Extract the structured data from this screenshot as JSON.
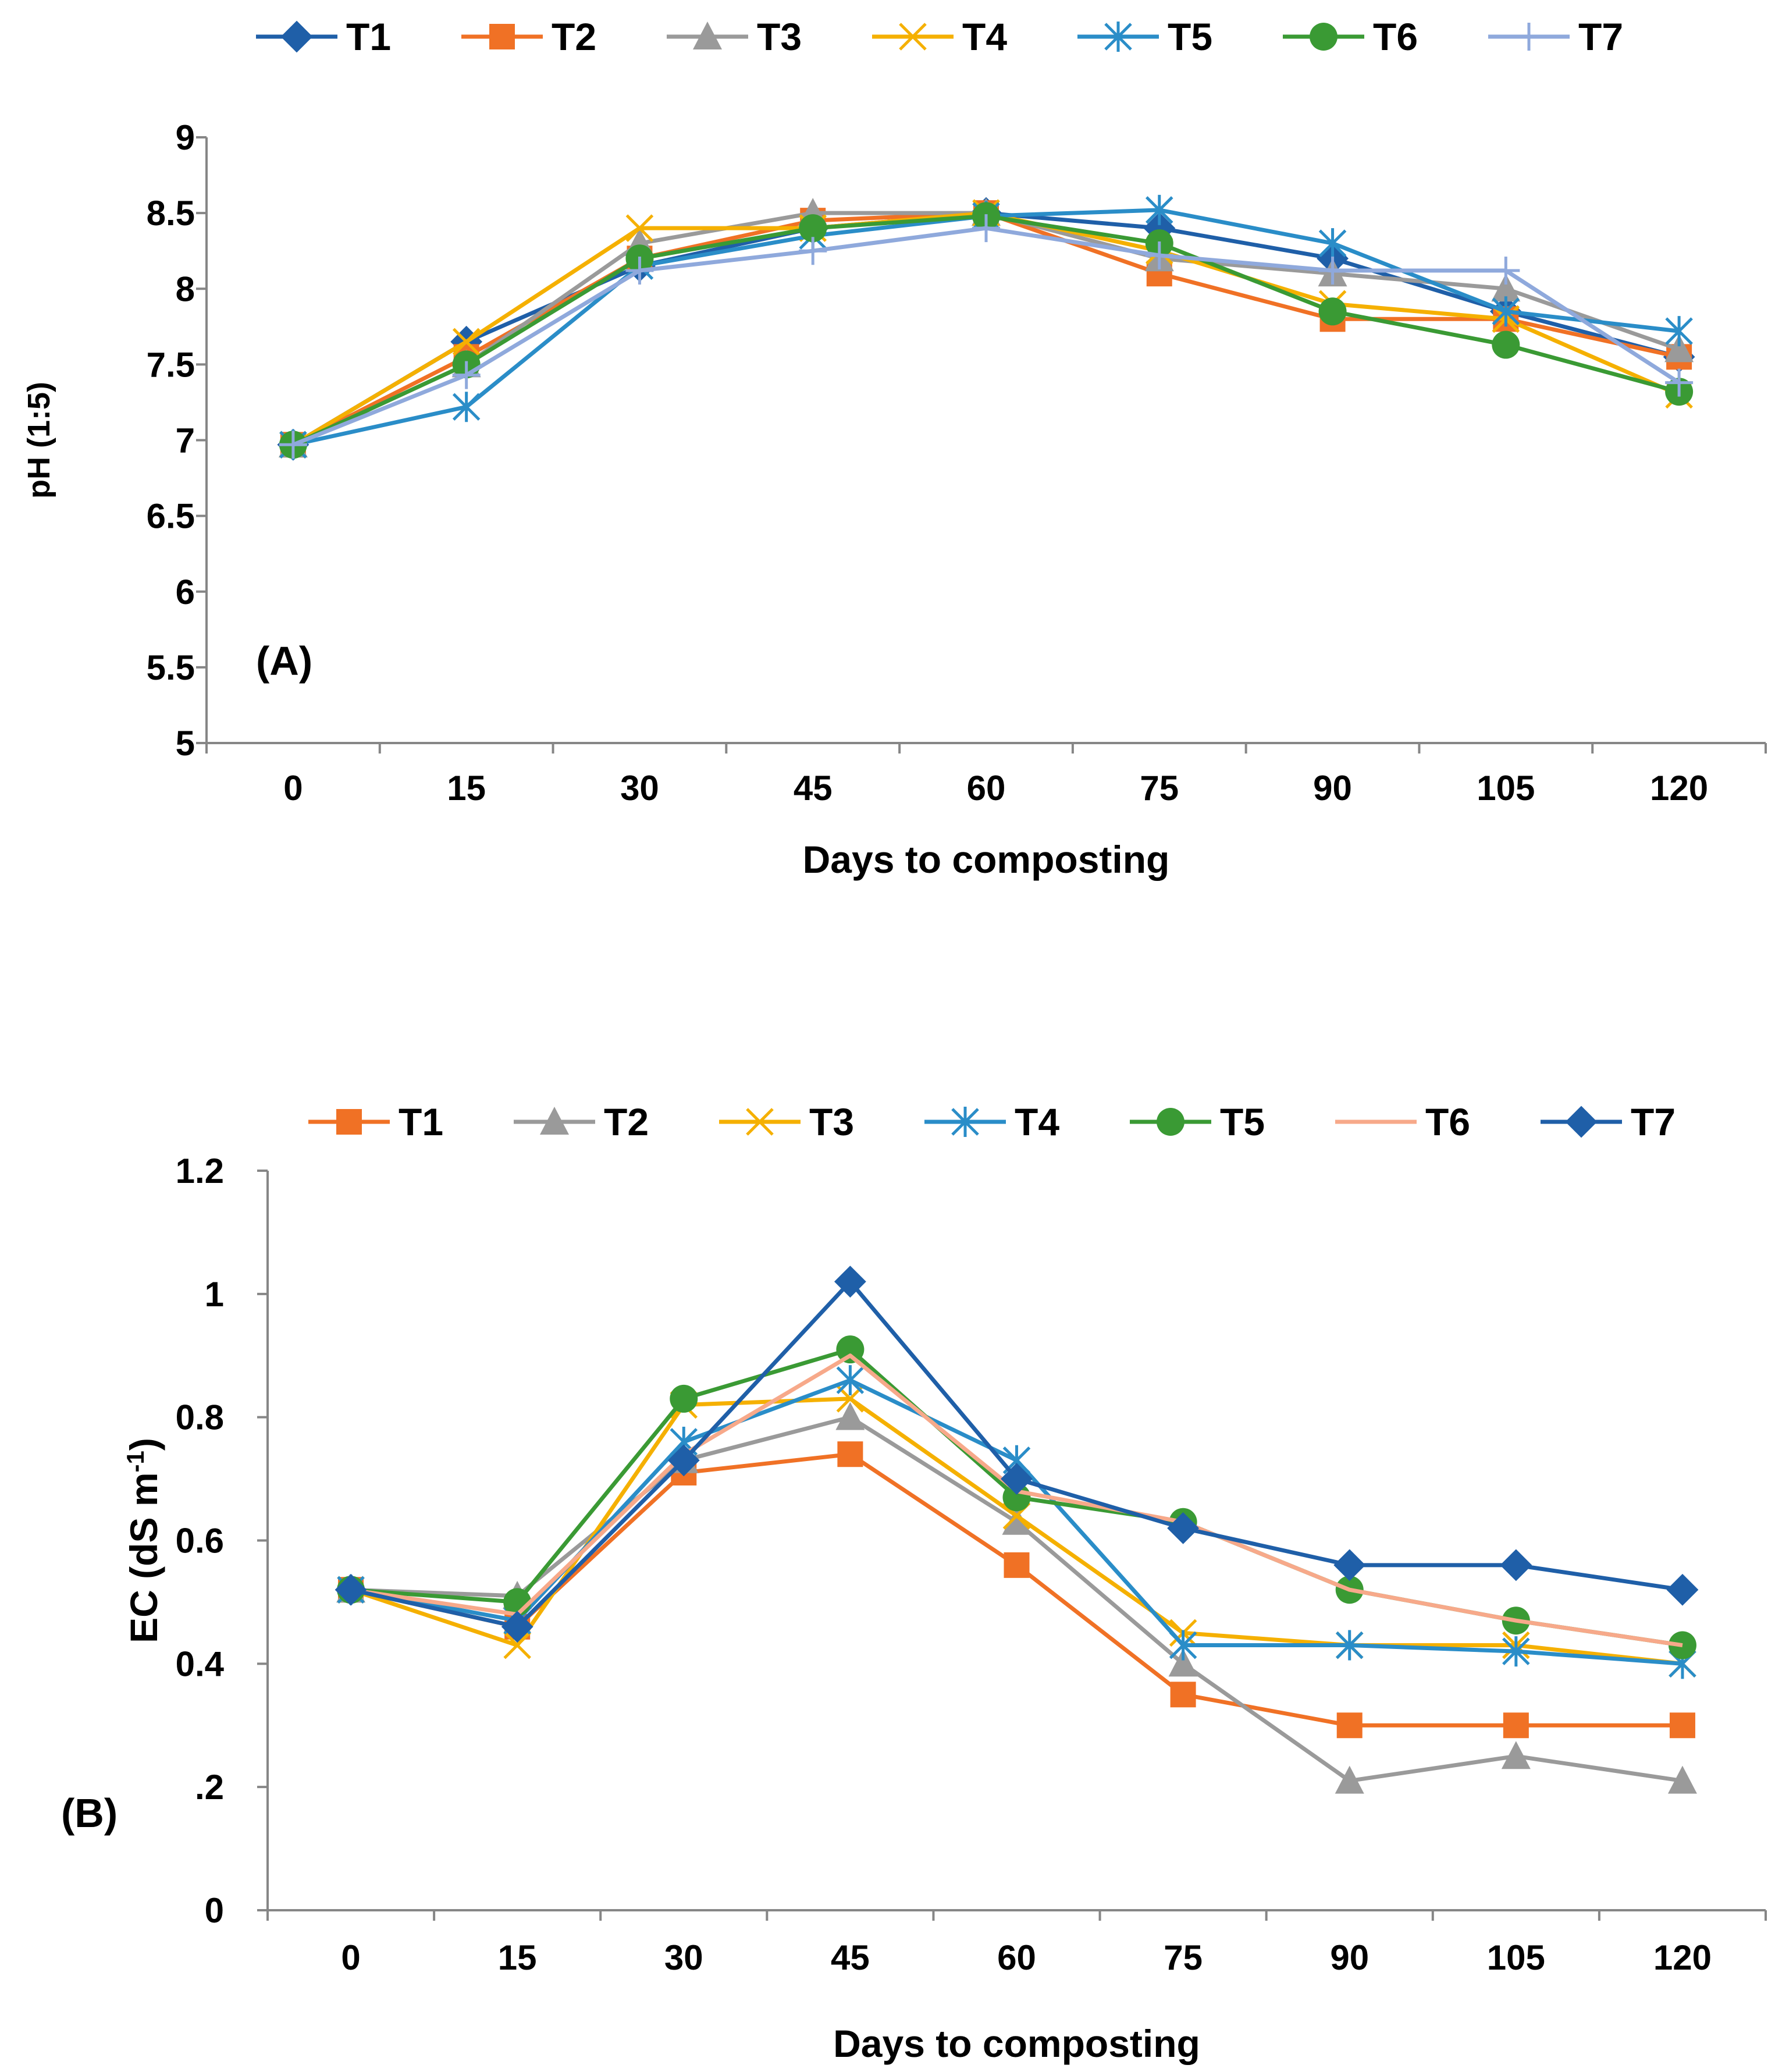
{
  "chart_data": [
    {
      "type": "line",
      "panel_label": "(A)",
      "xlabel": "Days to composting",
      "ylabel": "pH (1:5)",
      "categories": [
        "0",
        "15",
        "30",
        "45",
        "60",
        "75",
        "90",
        "105",
        "120"
      ],
      "ylim": [
        5,
        9
      ],
      "yticks": [
        5,
        5.5,
        6,
        6.5,
        7,
        7.5,
        8,
        8.5,
        9
      ],
      "ytick_labels": [
        "5",
        "5.5",
        "6",
        "6.5",
        "7",
        "7.5",
        "8",
        "8.5",
        "9"
      ],
      "grid": false,
      "legend_position": "top",
      "series": [
        {
          "name": "T1",
          "color": "#1f5fa8",
          "marker": "diamond",
          "values": [
            6.97,
            7.65,
            8.15,
            8.4,
            8.5,
            8.4,
            8.2,
            7.85,
            7.55
          ]
        },
        {
          "name": "T2",
          "color": "#f07125",
          "marker": "square",
          "values": [
            6.97,
            7.55,
            8.2,
            8.45,
            8.5,
            8.1,
            7.8,
            7.8,
            7.55
          ]
        },
        {
          "name": "T3",
          "color": "#9a9a9a",
          "marker": "triangle",
          "values": [
            6.97,
            7.5,
            8.3,
            8.5,
            8.5,
            8.2,
            8.1,
            8.0,
            7.6
          ]
        },
        {
          "name": "T4",
          "color": "#f5b000",
          "marker": "x",
          "values": [
            6.97,
            7.65,
            8.4,
            8.4,
            8.5,
            8.25,
            7.9,
            7.8,
            7.3
          ]
        },
        {
          "name": "T5",
          "color": "#2a8dc8",
          "marker": "asterisk",
          "values": [
            6.97,
            7.22,
            8.15,
            8.35,
            8.48,
            8.52,
            8.3,
            7.85,
            7.72
          ]
        },
        {
          "name": "T6",
          "color": "#3a9a34",
          "marker": "circle",
          "values": [
            6.97,
            7.5,
            8.2,
            8.4,
            8.48,
            8.3,
            7.85,
            7.63,
            7.32
          ]
        },
        {
          "name": "T7",
          "color": "#8fa9dc",
          "marker": "plus",
          "values": [
            6.97,
            7.43,
            8.12,
            8.25,
            8.4,
            8.22,
            8.12,
            8.12,
            7.38
          ]
        }
      ]
    },
    {
      "type": "line",
      "panel_label": "(B)",
      "xlabel": "Days to composting",
      "ylabel": "EC (dS m",
      "ylabel_sup": "-1",
      "ylabel_end": ")",
      "categories": [
        "0",
        "15",
        "30",
        "45",
        "60",
        "75",
        "90",
        "105",
        "120"
      ],
      "ylim": [
        0,
        1.2
      ],
      "yticks": [
        0,
        0.2,
        0.4,
        0.6,
        0.8,
        1.0,
        1.2
      ],
      "ytick_labels": [
        "0",
        ".2",
        "0.4",
        "0.6",
        "0.8",
        "1",
        "1.2"
      ],
      "grid": false,
      "legend_position": "top",
      "series": [
        {
          "name": "T1",
          "color": "#f07125",
          "marker": "square",
          "values": [
            0.52,
            0.46,
            0.71,
            0.74,
            0.56,
            0.35,
            0.3,
            0.3,
            0.3
          ]
        },
        {
          "name": "T2",
          "color": "#9a9a9a",
          "marker": "triangle",
          "values": [
            0.52,
            0.51,
            0.73,
            0.8,
            0.63,
            0.4,
            0.21,
            0.25,
            0.21
          ]
        },
        {
          "name": "T3",
          "color": "#f5b000",
          "marker": "x",
          "values": [
            0.52,
            0.43,
            0.82,
            0.83,
            0.64,
            0.45,
            0.43,
            0.43,
            0.4
          ]
        },
        {
          "name": "T4",
          "color": "#2a8dc8",
          "marker": "asterisk",
          "values": [
            0.52,
            0.47,
            0.76,
            0.86,
            0.73,
            0.43,
            0.43,
            0.42,
            0.4
          ]
        },
        {
          "name": "T5",
          "color": "#3a9a34",
          "marker": "circle",
          "values": [
            0.52,
            0.5,
            0.83,
            0.91,
            0.67,
            0.63,
            0.52,
            0.47,
            0.43
          ]
        },
        {
          "name": "T6",
          "color": "#f7a98a",
          "marker": "none",
          "values": [
            0.52,
            0.48,
            0.74,
            0.9,
            0.68,
            0.63,
            0.52,
            0.47,
            0.43
          ]
        },
        {
          "name": "T7",
          "color": "#1f5fa8",
          "marker": "diamond",
          "values": [
            0.52,
            0.46,
            0.73,
            1.02,
            0.7,
            0.62,
            0.56,
            0.56,
            0.52
          ]
        }
      ]
    }
  ]
}
